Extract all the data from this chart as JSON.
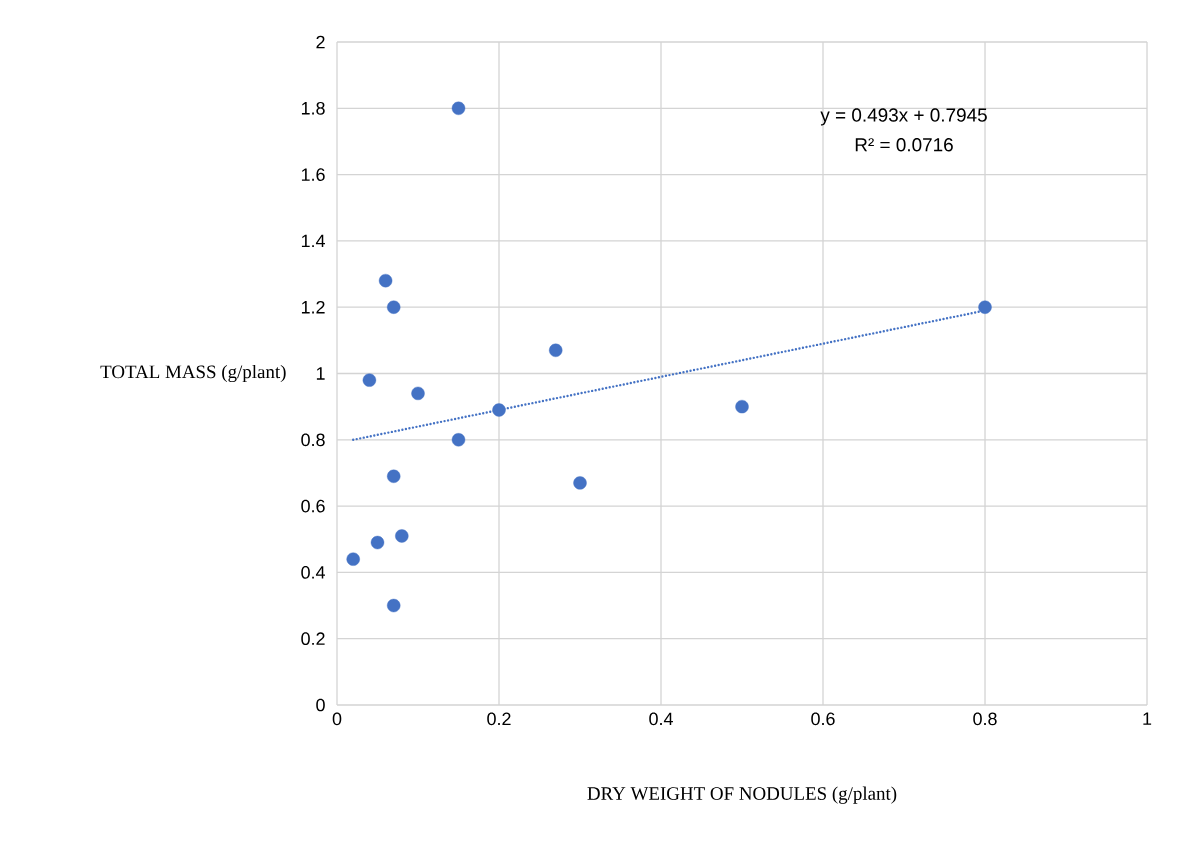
{
  "chart_data": {
    "type": "scatter",
    "xlabel": "DRY WEIGHT OF NODULES (g/plant)",
    "ylabel": "TOTAL MASS (g/plant)",
    "xlim": [
      0,
      1
    ],
    "xticks": [
      0,
      0.2,
      0.4,
      0.6,
      0.8,
      1
    ],
    "ylim": [
      0,
      2
    ],
    "yticks": [
      0,
      0.2,
      0.4,
      0.6,
      0.8,
      1,
      1.2,
      1.4,
      1.6,
      1.8,
      2
    ],
    "grid": true,
    "marker": "circle",
    "annotations": [
      "y = 0.493x + 0.7945",
      "R² = 0.0716"
    ],
    "series": [
      {
        "color": "#4472c4",
        "x": [
          0.02,
          0.04,
          0.05,
          0.06,
          0.07,
          0.07,
          0.07,
          0.08,
          0.1,
          0.15,
          0.15,
          0.2,
          0.27,
          0.3,
          0.5,
          0.8
        ],
        "values": [
          0.44,
          0.98,
          0.49,
          1.28,
          1.2,
          0.69,
          0.3,
          0.51,
          0.94,
          1.8,
          0.8,
          0.89,
          1.07,
          0.67,
          0.9,
          1.2
        ]
      },
      {
        "type": "line",
        "color": "#4472c4",
        "line_style": "dotted",
        "marker": "none",
        "x": [
          0.02,
          0.8
        ],
        "values": [
          0.8,
          1.19
        ]
      }
    ]
  }
}
